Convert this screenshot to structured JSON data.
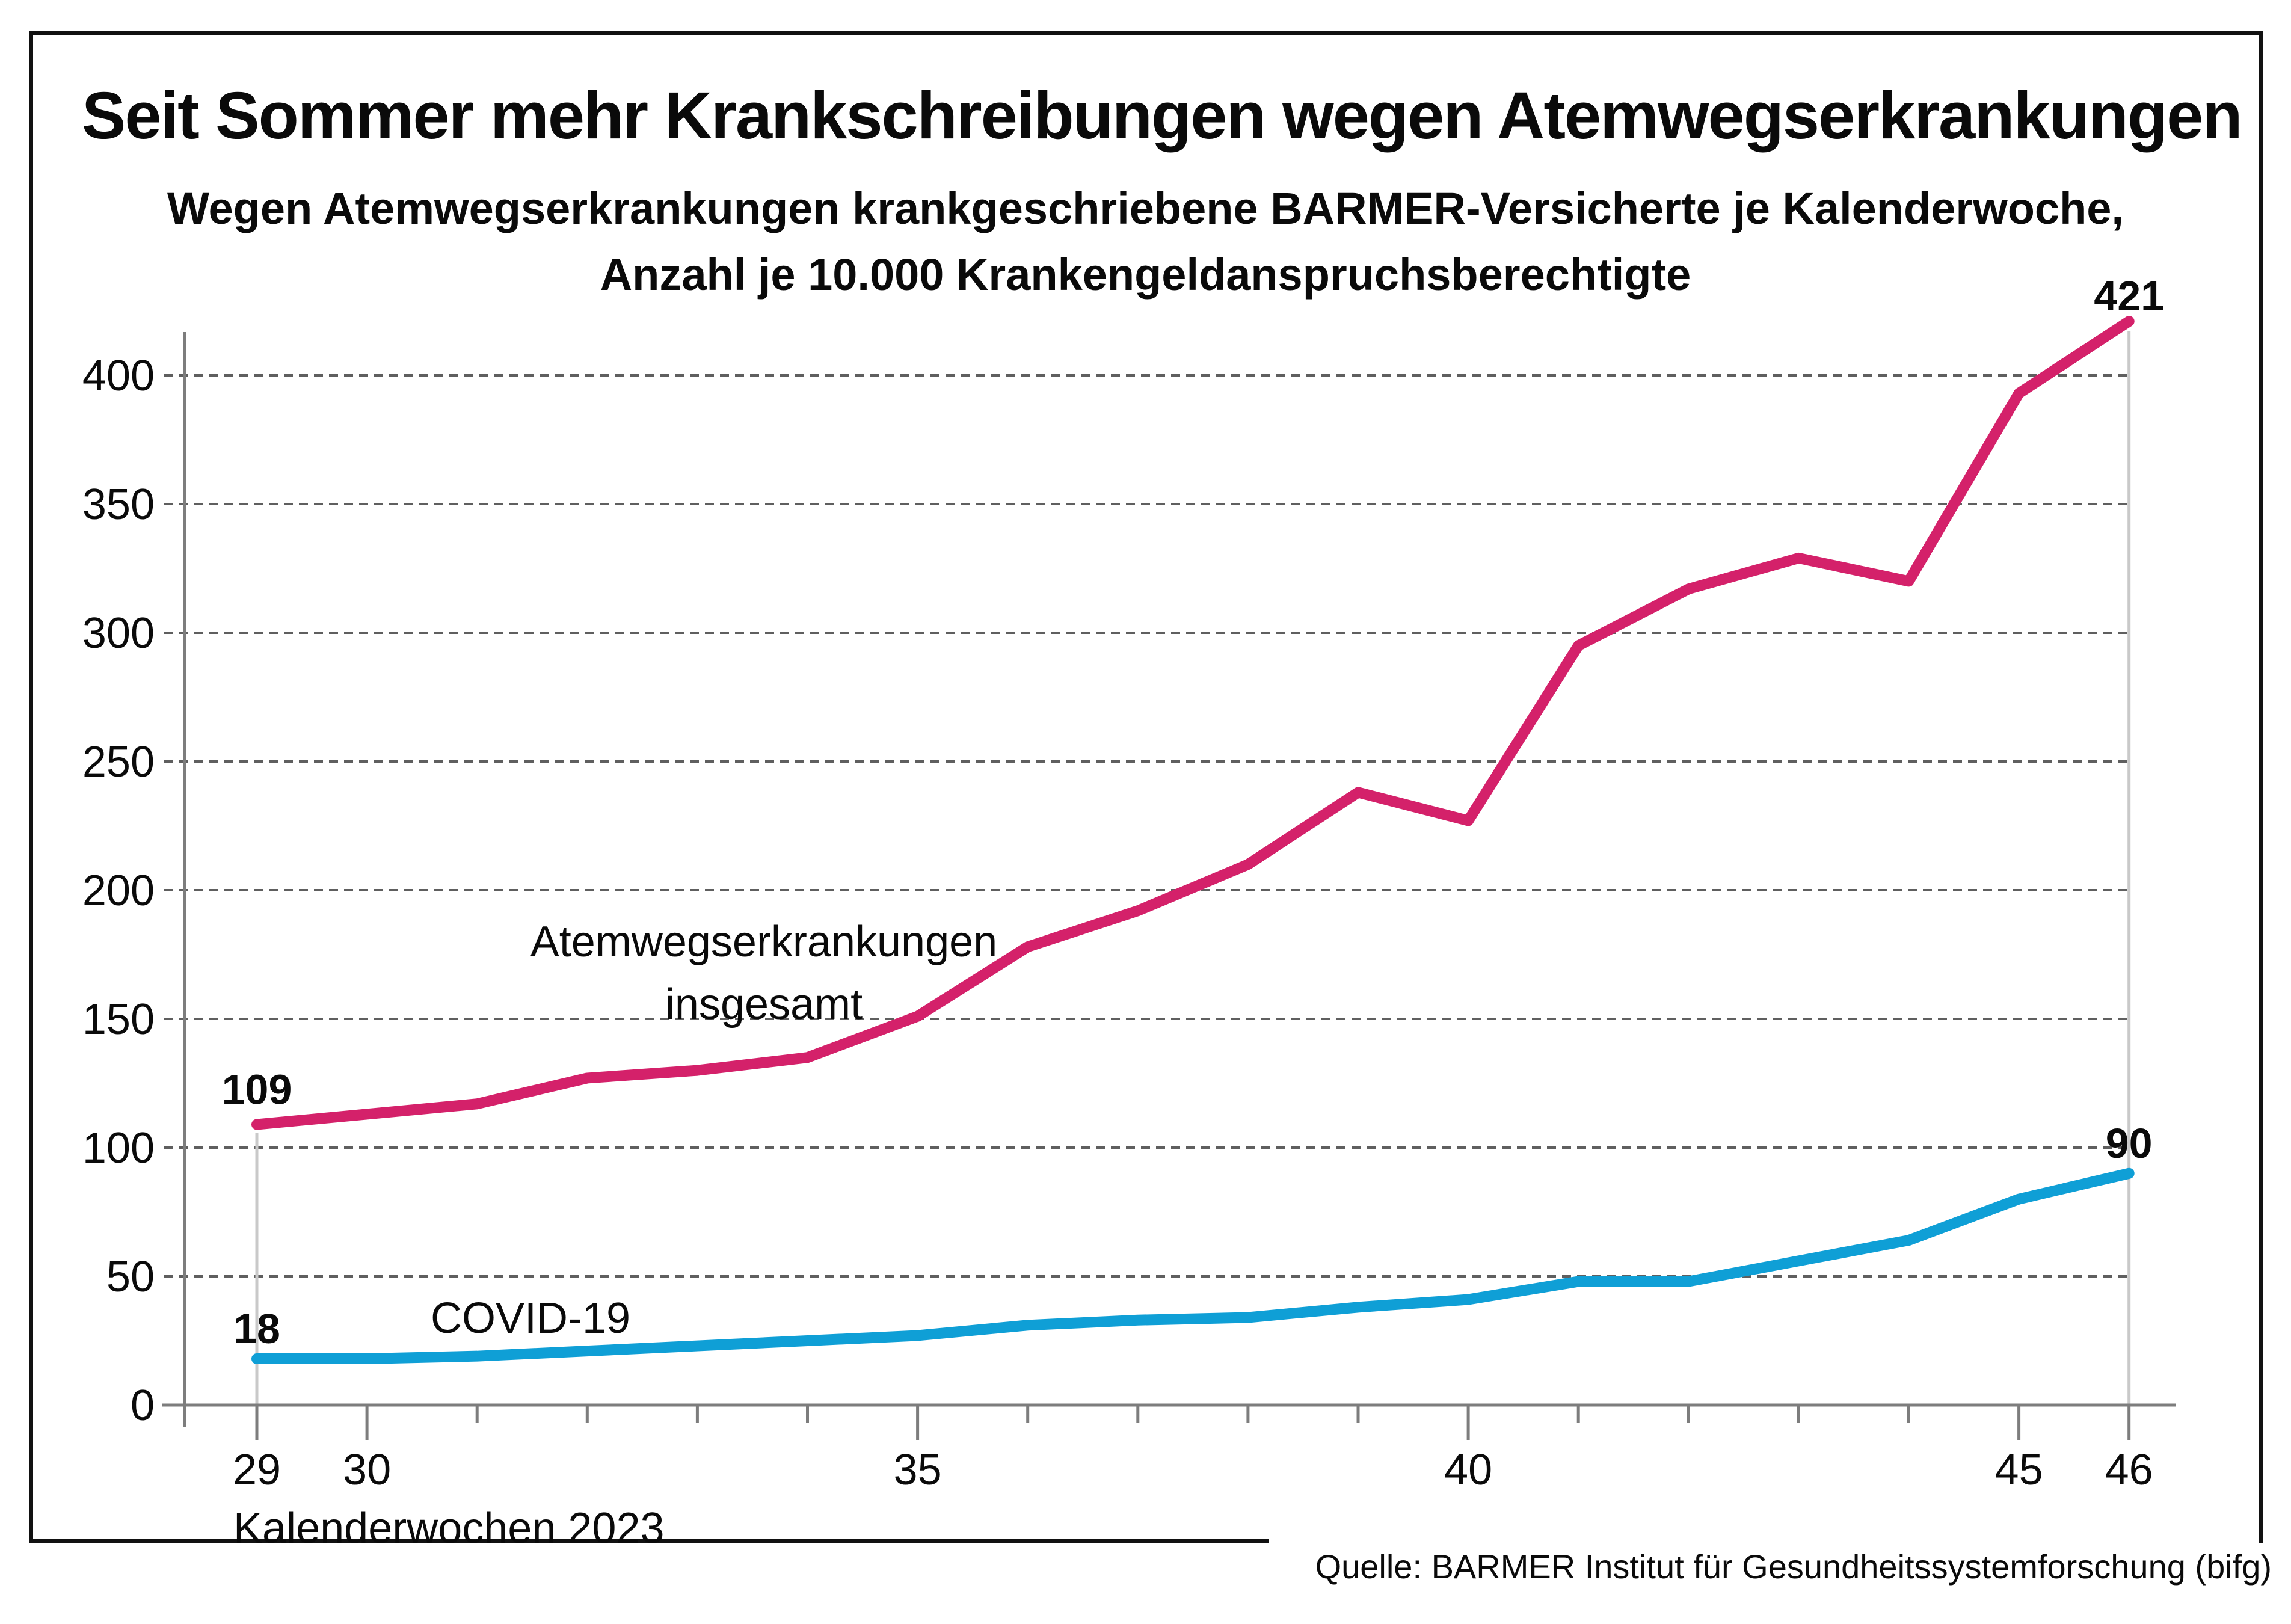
{
  "chart_data": {
    "type": "line",
    "title": "Seit Sommer mehr Krankschreibungen wegen Atemwegserkrankungen",
    "subtitle": [
      "Wegen Atemwegserkrankungen krankgeschriebene BARMER-Versicherte je Kalenderwoche,",
      "Anzahl je 10.000 Krankengeldanspruchsberechtigte"
    ],
    "xlabel": "Kalenderwochen 2023",
    "source": "Quelle: BARMER Institut für Gesundheitssystemforschung (bifg)",
    "x": [
      29,
      30,
      31,
      32,
      33,
      34,
      35,
      36,
      37,
      38,
      39,
      40,
      41,
      42,
      43,
      44,
      45,
      46
    ],
    "x_tick_labels": [
      29,
      30,
      35,
      40,
      45,
      46
    ],
    "y_ticks": [
      0,
      50,
      100,
      150,
      200,
      250,
      300,
      350,
      400
    ],
    "ylim": [
      0,
      430
    ],
    "grid": "horizontal-dashed",
    "legend_position": "inline-labels",
    "series": [
      {
        "name": "Atemwegserkrankungen insgesamt",
        "label_lines": [
          "Atemwegserkrankungen",
          "insgesamt"
        ],
        "color": "#d4216a",
        "values": [
          109,
          113,
          117,
          127,
          130,
          135,
          151,
          178,
          192,
          210,
          238,
          227,
          295,
          317,
          329,
          320,
          393,
          421
        ],
        "endpoint_labels": {
          "first": "109",
          "last": "421"
        }
      },
      {
        "name": "COVID-19",
        "label_lines": [
          "COVID-19"
        ],
        "color": "#0f9fd6",
        "values": [
          18,
          18,
          19,
          21,
          23,
          25,
          27,
          31,
          33,
          34,
          38,
          41,
          48,
          48,
          56,
          64,
          80,
          90
        ],
        "endpoint_labels": {
          "first": "18",
          "last": "90"
        }
      }
    ],
    "colors": {
      "axis": "#7d7d7d",
      "gridline": "#5f5f5f",
      "leader_line": "#c9c9c9",
      "text": "#0a0a0a"
    }
  }
}
